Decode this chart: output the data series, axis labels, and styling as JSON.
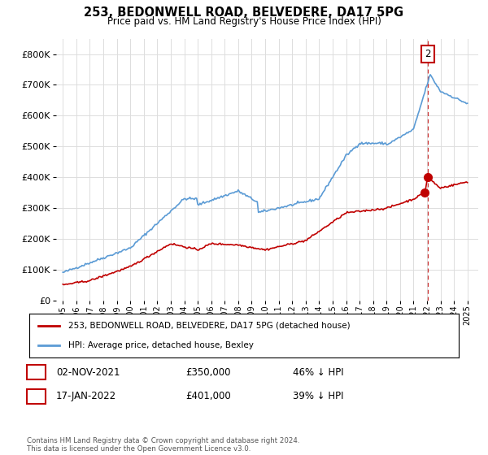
{
  "title": "253, BEDONWELL ROAD, BELVEDERE, DA17 5PG",
  "subtitle": "Price paid vs. HM Land Registry's House Price Index (HPI)",
  "ylim": [
    0,
    850000
  ],
  "yticks": [
    0,
    100000,
    200000,
    300000,
    400000,
    500000,
    600000,
    700000,
    800000
  ],
  "hpi_color": "#5b9bd5",
  "price_color": "#c00000",
  "vline_x": 2022.05,
  "transaction1": {
    "date_num": 2021.84,
    "price": 350000,
    "label": "1",
    "date_str": "02-NOV-2021",
    "pct_str": "46% ↓ HPI"
  },
  "transaction2": {
    "date_num": 2022.05,
    "price": 401000,
    "label": "2",
    "date_str": "17-JAN-2022",
    "pct_str": "39% ↓ HPI"
  },
  "legend_line1": "253, BEDONWELL ROAD, BELVEDERE, DA17 5PG (detached house)",
  "legend_line2": "HPI: Average price, detached house, Bexley",
  "footer": "Contains HM Land Registry data © Crown copyright and database right 2024.\nThis data is licensed under the Open Government Licence v3.0.",
  "table_row1": [
    "1",
    "02-NOV-2021",
    "£350,000",
    "46% ↓ HPI"
  ],
  "table_row2": [
    "2",
    "17-JAN-2022",
    "£401,000",
    "39% ↓ HPI"
  ],
  "background_color": "#ffffff",
  "grid_color": "#dddddd",
  "xlim_left": 1994.5,
  "xlim_right": 2025.8
}
